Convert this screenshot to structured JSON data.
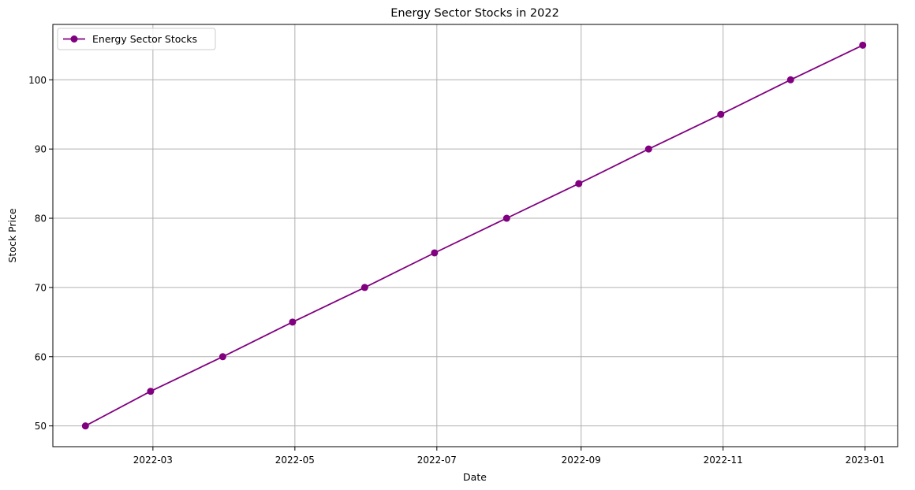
{
  "chart_data": {
    "type": "line",
    "title": "Energy Sector Stocks in 2022",
    "xlabel": "Date",
    "ylabel": "Stock Price",
    "x_axis_type": "date",
    "xlim": [
      "2022-01-17",
      "2023-01-15"
    ],
    "ylim": [
      47.0,
      108.0
    ],
    "x_ticks": [
      "2022-03",
      "2022-05",
      "2022-07",
      "2022-09",
      "2022-11",
      "2023-01"
    ],
    "x_tick_dates": [
      "2022-03-01",
      "2022-05-01",
      "2022-07-01",
      "2022-09-01",
      "2022-11-01",
      "2023-01-01"
    ],
    "y_ticks": [
      50,
      60,
      70,
      80,
      90,
      100
    ],
    "grid": true,
    "legend_position": "top-left",
    "series": [
      {
        "name": "Energy Sector Stocks",
        "color": "#800080",
        "marker": "circle",
        "x": [
          "2022-01-31",
          "2022-02-28",
          "2022-03-31",
          "2022-04-30",
          "2022-05-31",
          "2022-06-30",
          "2022-07-31",
          "2022-08-31",
          "2022-09-30",
          "2022-10-31",
          "2022-11-30",
          "2022-12-31"
        ],
        "y": [
          50,
          55,
          60,
          65,
          70,
          75,
          80,
          85,
          90,
          95,
          100,
          105
        ]
      }
    ]
  }
}
